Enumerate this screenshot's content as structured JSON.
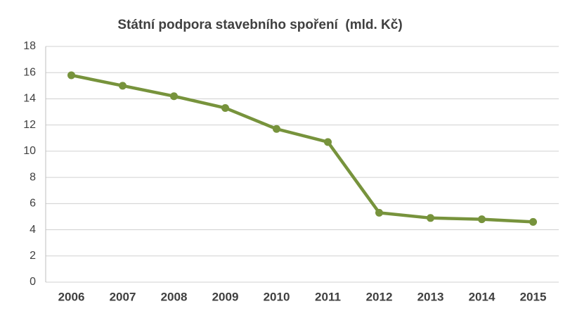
{
  "chart_data": {
    "type": "line",
    "title": "Státní podpora stavebního spoření  (mld. Kč)",
    "categories": [
      "2006",
      "2007",
      "2008",
      "2009",
      "2010",
      "2011",
      "2012",
      "2013",
      "2014",
      "2015"
    ],
    "values": [
      15.8,
      15.0,
      14.2,
      13.3,
      11.7,
      10.7,
      5.3,
      4.9,
      4.8,
      4.6
    ],
    "color": "#77933c",
    "ylim": [
      0,
      18
    ],
    "yticks": [
      0,
      2,
      4,
      6,
      8,
      10,
      12,
      14,
      16,
      18
    ],
    "grid": true
  }
}
